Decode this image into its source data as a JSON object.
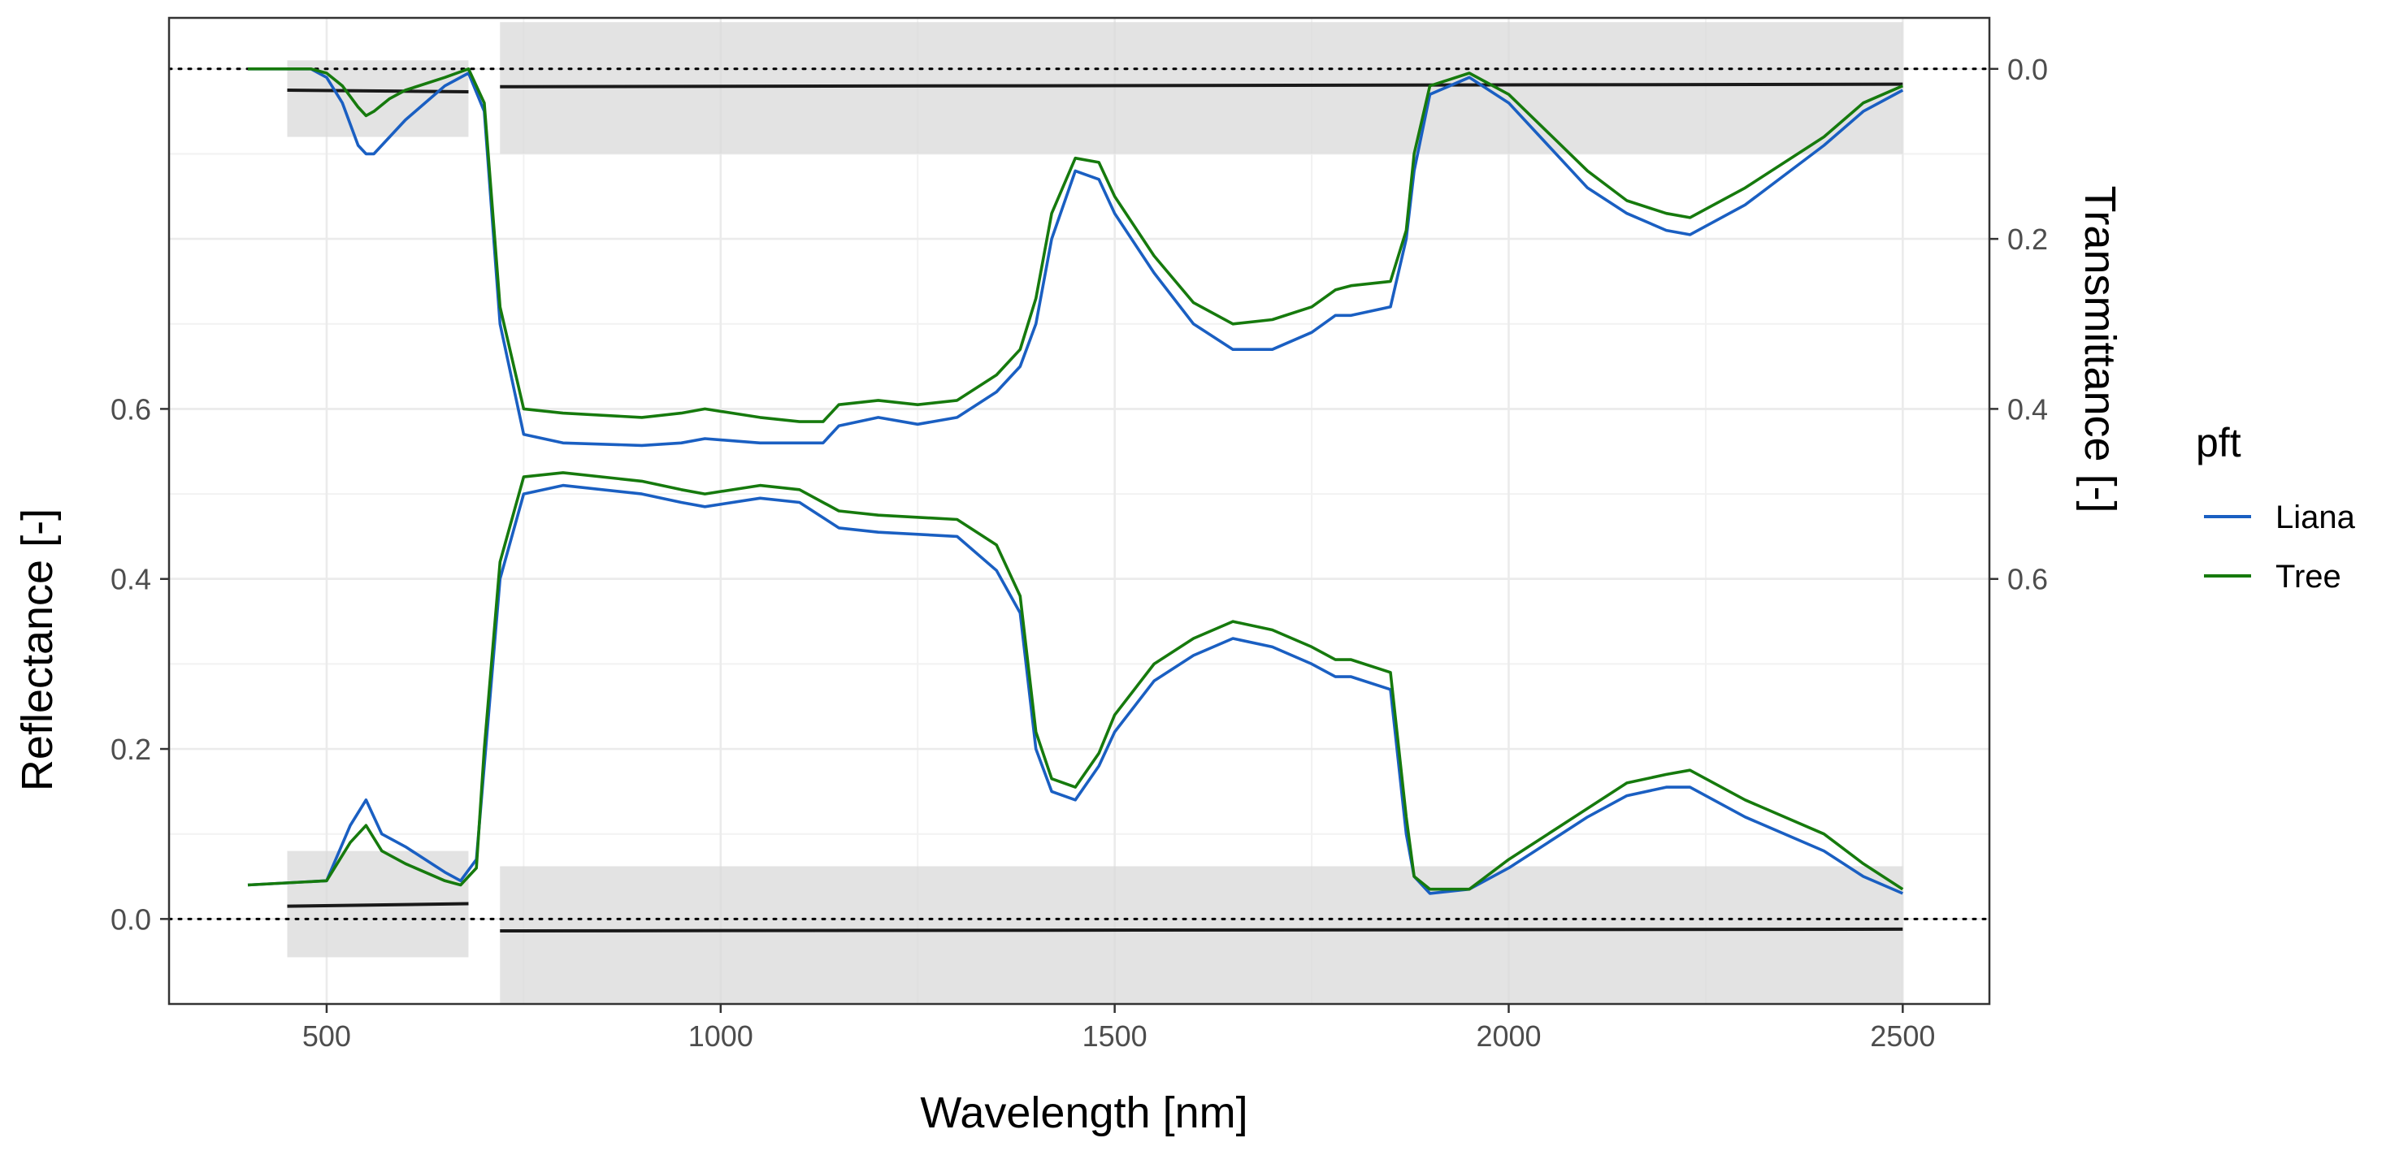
{
  "chart_data": {
    "type": "line",
    "xlabel": "Wavelength [nm]",
    "ylabel": "Reflectance [-]",
    "y2label": "Transmittance [-]",
    "x_ticks": [
      500,
      1000,
      1500,
      2000,
      2500
    ],
    "y_ticks": [
      0.0,
      0.2,
      0.4,
      0.6
    ],
    "y_tick_labels": [
      "0.0",
      "0.2",
      "0.4",
      "0.6"
    ],
    "y2_ticks": [
      0.0,
      0.2,
      0.4,
      0.6
    ],
    "y2_tick_labels": [
      "0.0",
      "0.2",
      "0.4",
      "0.6"
    ],
    "xlim": [
      300,
      2610
    ],
    "ylim": [
      -0.1,
      1.06
    ],
    "y2_transform": "transmittance = 1 - reflectance_axis",
    "grid": true,
    "legend": {
      "title": "pft",
      "position": "right",
      "entries": [
        {
          "label": "Liana",
          "color": "#1a5fc2"
        },
        {
          "label": "Tree",
          "color": "#167a0d"
        }
      ]
    },
    "reference_lines": [
      {
        "axis": "reflectance",
        "y": 0.0,
        "style": "dotted"
      },
      {
        "axis": "transmittance",
        "y": 0.0,
        "style": "dotted"
      }
    ],
    "bands": [
      {
        "axis": "reflectance",
        "x": [
          450,
          680
        ],
        "y": [
          0.015,
          0.018
        ],
        "ymin": -0.045,
        "ymax": 0.08
      },
      {
        "axis": "reflectance",
        "x": [
          720,
          2500
        ],
        "y": [
          -0.014,
          -0.012
        ],
        "ymin": -0.1,
        "ymax": 0.062
      },
      {
        "axis": "transmittance",
        "x": [
          450,
          680
        ],
        "y": [
          0.025,
          0.027
        ],
        "ymin": -0.01,
        "ymax": 0.08
      },
      {
        "axis": "transmittance",
        "x": [
          720,
          2500
        ],
        "y": [
          0.021,
          0.018
        ],
        "ymin": -0.055,
        "ymax": 0.1
      }
    ],
    "series": [
      {
        "name": "Liana",
        "kind": "reflectance",
        "color": "#1a5fc2",
        "x": [
          400,
          500,
          530,
          550,
          570,
          600,
          650,
          670,
          690,
          700,
          720,
          750,
          800,
          900,
          950,
          980,
          1050,
          1100,
          1150,
          1200,
          1300,
          1350,
          1380,
          1400,
          1420,
          1450,
          1480,
          1500,
          1550,
          1600,
          1650,
          1700,
          1750,
          1780,
          1800,
          1850,
          1870,
          1880,
          1900,
          1950,
          2000,
          2050,
          2100,
          2150,
          2200,
          2230,
          2300,
          2400,
          2450,
          2500
        ],
        "y": [
          0.04,
          0.045,
          0.11,
          0.14,
          0.1,
          0.085,
          0.055,
          0.045,
          0.07,
          0.18,
          0.4,
          0.5,
          0.51,
          0.5,
          0.49,
          0.485,
          0.495,
          0.49,
          0.46,
          0.455,
          0.45,
          0.41,
          0.36,
          0.2,
          0.15,
          0.14,
          0.18,
          0.22,
          0.28,
          0.31,
          0.33,
          0.32,
          0.3,
          0.285,
          0.285,
          0.27,
          0.1,
          0.05,
          0.03,
          0.035,
          0.06,
          0.09,
          0.12,
          0.145,
          0.155,
          0.155,
          0.12,
          0.08,
          0.05,
          0.03
        ]
      },
      {
        "name": "Tree",
        "kind": "reflectance",
        "color": "#167a0d",
        "x": [
          400,
          500,
          530,
          550,
          570,
          600,
          650,
          670,
          690,
          700,
          720,
          750,
          800,
          900,
          950,
          980,
          1050,
          1100,
          1150,
          1200,
          1300,
          1350,
          1380,
          1400,
          1420,
          1450,
          1480,
          1500,
          1550,
          1600,
          1650,
          1700,
          1750,
          1780,
          1800,
          1850,
          1870,
          1880,
          1900,
          1950,
          2000,
          2050,
          2100,
          2150,
          2200,
          2230,
          2300,
          2400,
          2450,
          2500
        ],
        "y": [
          0.04,
          0.045,
          0.09,
          0.11,
          0.08,
          0.065,
          0.045,
          0.04,
          0.06,
          0.2,
          0.42,
          0.52,
          0.525,
          0.515,
          0.505,
          0.5,
          0.51,
          0.505,
          0.48,
          0.475,
          0.47,
          0.44,
          0.38,
          0.22,
          0.165,
          0.155,
          0.195,
          0.24,
          0.3,
          0.33,
          0.35,
          0.34,
          0.32,
          0.305,
          0.305,
          0.29,
          0.12,
          0.05,
          0.035,
          0.035,
          0.07,
          0.1,
          0.13,
          0.16,
          0.17,
          0.175,
          0.14,
          0.1,
          0.065,
          0.035
        ]
      },
      {
        "name": "Liana",
        "kind": "transmittance",
        "color": "#1a5fc2",
        "x": [
          400,
          480,
          500,
          520,
          540,
          550,
          560,
          580,
          600,
          650,
          680,
          700,
          720,
          750,
          800,
          900,
          950,
          980,
          1050,
          1100,
          1130,
          1150,
          1200,
          1250,
          1300,
          1350,
          1380,
          1400,
          1420,
          1450,
          1480,
          1500,
          1550,
          1600,
          1650,
          1700,
          1750,
          1780,
          1800,
          1850,
          1870,
          1880,
          1900,
          1950,
          2000,
          2050,
          2100,
          2150,
          2200,
          2230,
          2300,
          2400,
          2450,
          2500
        ],
        "y": [
          0.0,
          0.0,
          0.01,
          0.04,
          0.09,
          0.1,
          0.1,
          0.08,
          0.06,
          0.02,
          0.005,
          0.05,
          0.3,
          0.43,
          0.44,
          0.443,
          0.44,
          0.435,
          0.44,
          0.44,
          0.44,
          0.42,
          0.41,
          0.418,
          0.41,
          0.38,
          0.35,
          0.3,
          0.2,
          0.12,
          0.13,
          0.17,
          0.24,
          0.3,
          0.33,
          0.33,
          0.31,
          0.29,
          0.29,
          0.28,
          0.2,
          0.12,
          0.03,
          0.01,
          0.04,
          0.09,
          0.14,
          0.17,
          0.19,
          0.195,
          0.16,
          0.09,
          0.05,
          0.025
        ]
      },
      {
        "name": "Tree",
        "kind": "transmittance",
        "color": "#167a0d",
        "x": [
          400,
          480,
          500,
          520,
          540,
          550,
          560,
          580,
          600,
          650,
          680,
          700,
          720,
          750,
          800,
          900,
          950,
          980,
          1050,
          1100,
          1130,
          1150,
          1200,
          1250,
          1300,
          1350,
          1380,
          1400,
          1420,
          1450,
          1480,
          1500,
          1550,
          1600,
          1650,
          1700,
          1750,
          1780,
          1800,
          1850,
          1870,
          1880,
          1900,
          1950,
          2000,
          2050,
          2100,
          2150,
          2200,
          2230,
          2300,
          2400,
          2450,
          2500
        ],
        "y": [
          0.0,
          0.0,
          0.005,
          0.02,
          0.045,
          0.055,
          0.05,
          0.035,
          0.025,
          0.01,
          0.0,
          0.04,
          0.28,
          0.4,
          0.405,
          0.41,
          0.405,
          0.4,
          0.41,
          0.415,
          0.415,
          0.395,
          0.39,
          0.395,
          0.39,
          0.36,
          0.33,
          0.27,
          0.17,
          0.105,
          0.11,
          0.15,
          0.22,
          0.275,
          0.3,
          0.295,
          0.28,
          0.26,
          0.255,
          0.25,
          0.19,
          0.1,
          0.02,
          0.005,
          0.03,
          0.075,
          0.12,
          0.155,
          0.17,
          0.175,
          0.14,
          0.08,
          0.04,
          0.02
        ]
      }
    ]
  }
}
